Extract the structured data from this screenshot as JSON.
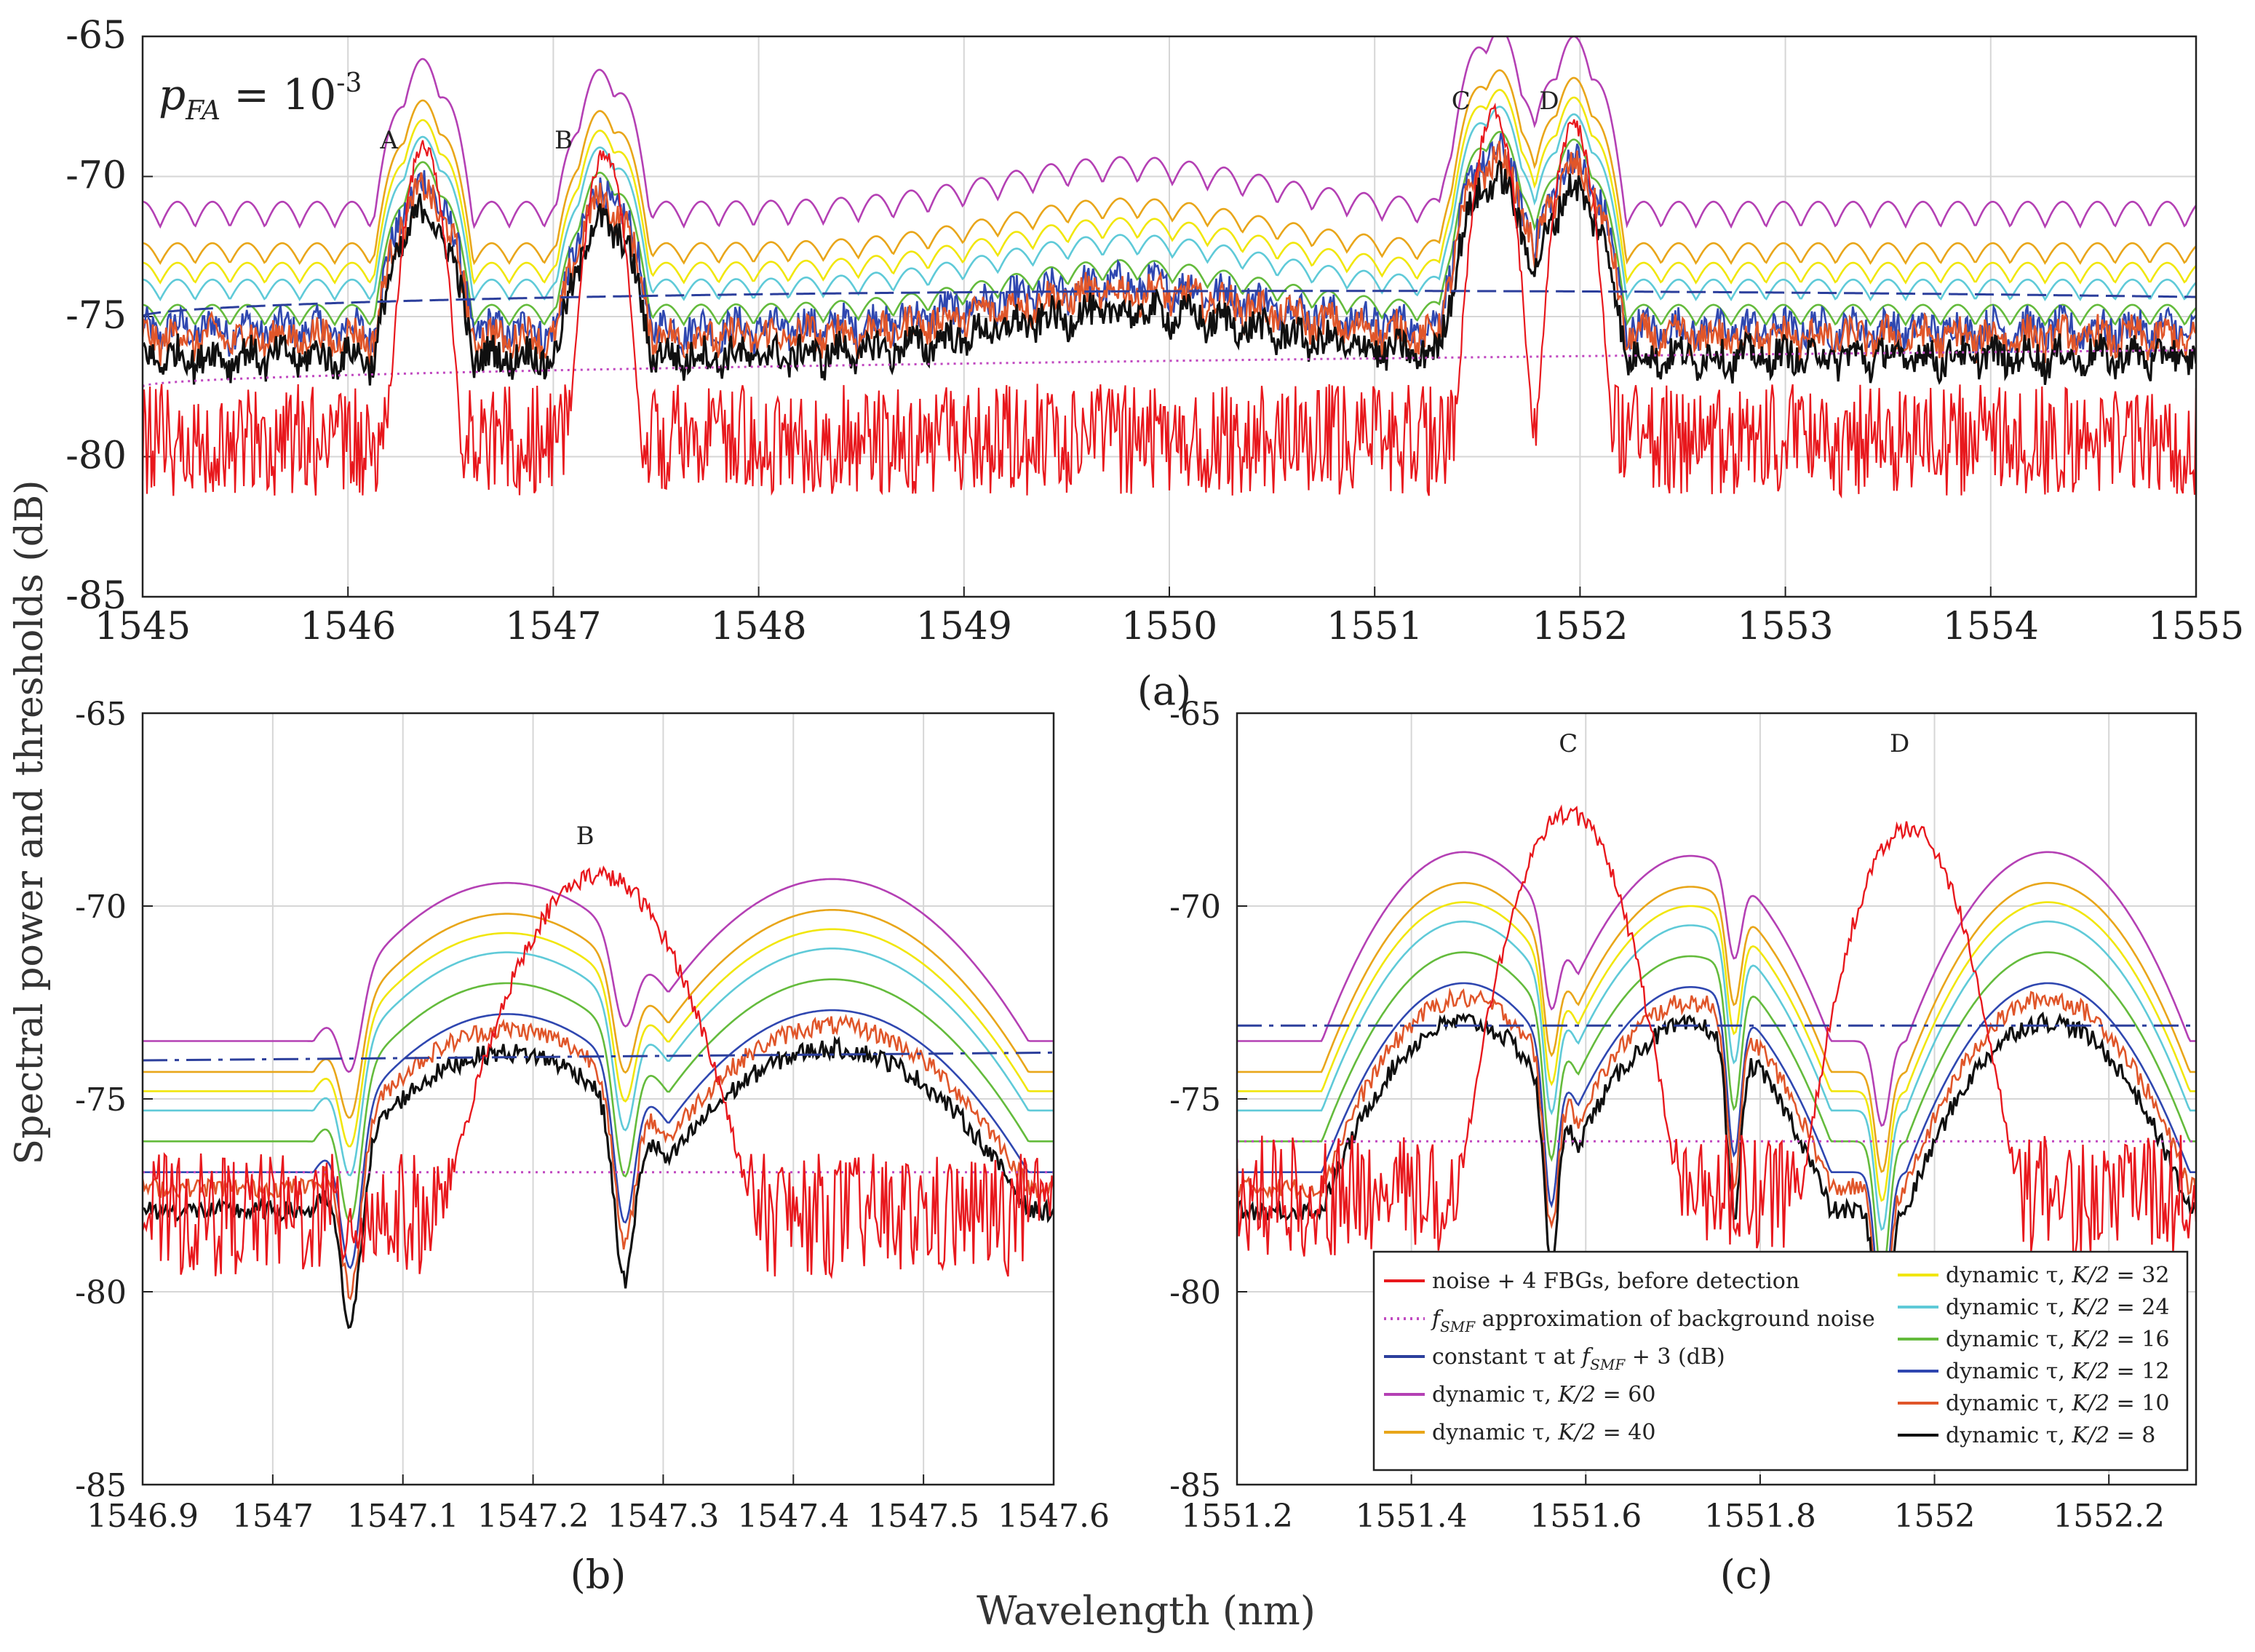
{
  "figure": {
    "ylabel": "Spectral power and thresholds (dB)",
    "xlabel": "Wavelength (nm)",
    "pfa": {
      "p": "p",
      "sub": "FA",
      "eq": " = 10",
      "exp": "-3"
    }
  },
  "colors": {
    "noise": "#e8181d",
    "fsmf": "#c048c0",
    "constant": "#2c3f9c",
    "k60": "#b440b4",
    "k40": "#e8a61a",
    "k32": "#f1e60c",
    "k24": "#5fcad8",
    "k16": "#64bb3c",
    "k12": "#2f47b0",
    "k10": "#e0562a",
    "k8": "#101010",
    "grid": "#d6d6d6"
  },
  "chart_data": [
    {
      "id": "a",
      "type": "line",
      "panel_label": "(a)",
      "xlim": [
        1545,
        1555
      ],
      "ylim": [
        -85,
        -65
      ],
      "xticks": [
        "1545",
        "1546",
        "1547",
        "1548",
        "1549",
        "1550",
        "1551",
        "1552",
        "1553",
        "1554",
        "1555"
      ],
      "yticks": [
        "-65",
        "-70",
        "-75",
        "-80",
        "-85"
      ],
      "peaks": [
        {
          "name": "A",
          "center": 1546.37,
          "peak_db": -68.9,
          "label_x": 1546.2,
          "label_y": -69.0
        },
        {
          "name": "B",
          "center": 1547.25,
          "peak_db": -69.2,
          "label_x": 1547.05,
          "label_y": -69.0
        },
        {
          "name": "C",
          "center": 1551.58,
          "peak_db": -67.7,
          "label_x": 1551.42,
          "label_y": -67.6
        },
        {
          "name": "D",
          "center": 1551.97,
          "peak_db": -68.1,
          "label_x": 1551.85,
          "label_y": -67.6
        }
      ],
      "baseline_db": -79.0,
      "fsmf_db": [
        -77.5,
        -77.2,
        -76.6,
        -76.2
      ],
      "constant_db": [
        -75.0,
        -74.0,
        -73.4,
        -73.9
      ],
      "dynamic_offsets_db": {
        "k60": 4.6,
        "k40": 3.3,
        "k32": 2.6,
        "k24": 2.0,
        "k16": 1.1,
        "k12": 0.5,
        "k10": 0.2,
        "k8": -0.5
      }
    },
    {
      "id": "b",
      "type": "line",
      "panel_label": "(b)",
      "xlim": [
        1546.9,
        1547.6
      ],
      "ylim": [
        -85,
        -65
      ],
      "xticks": [
        "1546.9",
        "1547",
        "1547.1",
        "1547.2",
        "1547.3",
        "1547.4",
        "1547.5",
        "1547.6"
      ],
      "yticks": [
        "-65",
        "-70",
        "-75",
        "-80",
        "-85"
      ],
      "peaks": [
        {
          "name": "B",
          "center": 1547.25,
          "peak_db": -69.2,
          "label_x": 1547.24,
          "label_y": -68.4
        }
      ],
      "lobes": [
        {
          "center": 1547.18,
          "db_k60": -69.4
        },
        {
          "center": 1547.43,
          "db_k60": -69.3
        }
      ],
      "nulls": [
        1547.06,
        1547.27
      ],
      "baseline_db": -78.0,
      "fsmf_db": -76.9,
      "constant_db": [
        -74.0,
        -73.8
      ],
      "dynamic_offsets_db": {
        "k60": 0.0,
        "k40": 0.8,
        "k32": 1.3,
        "k24": 1.8,
        "k16": 2.6,
        "k12": 3.4,
        "k10": 3.8,
        "k8": 4.4
      }
    },
    {
      "id": "c",
      "type": "line",
      "panel_label": "(c)",
      "xlim": [
        1551.2,
        1552.3
      ],
      "ylim": [
        -85,
        -65
      ],
      "xticks": [
        "1551.2",
        "1551.4",
        "1551.6",
        "1551.8",
        "1552",
        "1552.2"
      ],
      "yticks": [
        "-65",
        "-70",
        "-75",
        "-80",
        "-85"
      ],
      "peaks": [
        {
          "name": "C",
          "center": 1551.58,
          "peak_db": -67.6,
          "label_x": 1551.58,
          "label_y": -66.0
        },
        {
          "name": "D",
          "center": 1551.97,
          "peak_db": -68.0,
          "label_x": 1551.96,
          "label_y": -66.0
        }
      ],
      "lobes": [
        {
          "center": 1551.46,
          "db_k60": -68.6
        },
        {
          "center": 1551.72,
          "db_k60": -68.7
        },
        {
          "center": 1552.13,
          "db_k60": -68.6
        }
      ],
      "nulls": [
        1551.56,
        1551.77,
        1551.94
      ],
      "baseline_db": -77.5,
      "fsmf_db": -76.1,
      "constant_db": [
        -73.1,
        -73.1
      ],
      "dynamic_offsets_db": {
        "k60": 0.0,
        "k40": 0.8,
        "k32": 1.3,
        "k24": 1.8,
        "k16": 2.6,
        "k12": 3.4,
        "k10": 3.8,
        "k8": 4.4
      }
    }
  ],
  "legend": {
    "left": [
      {
        "key": "noise",
        "text": "noise + 4 FBGs, before detection",
        "style": "solid"
      },
      {
        "key": "fsmf",
        "pre": "",
        "italic": "f",
        "sub": "SMF",
        "text": " approximation of background noise",
        "style": "dotted"
      },
      {
        "key": "constant",
        "pre": "constant τ at ",
        "italic": "f",
        "sub": "SMF",
        "text": " + 3 (dB)",
        "style": "solid"
      },
      {
        "key": "k60",
        "pre": "dynamic τ, ",
        "italic": "K/2",
        "text": " = 60",
        "style": "solid"
      },
      {
        "key": "k40",
        "pre": "dynamic τ, ",
        "italic": "K/2",
        "text": " = 40",
        "style": "solid"
      }
    ],
    "right": [
      {
        "key": "k32",
        "pre": "dynamic τ, ",
        "italic": "K/2",
        "text": " = 32",
        "style": "solid"
      },
      {
        "key": "k24",
        "pre": "dynamic τ, ",
        "italic": "K/2",
        "text": " = 24",
        "style": "solid"
      },
      {
        "key": "k16",
        "pre": "dynamic τ, ",
        "italic": "K/2",
        "text": " = 16",
        "style": "solid"
      },
      {
        "key": "k12",
        "pre": "dynamic τ, ",
        "italic": "K/2",
        "text": " = 12",
        "style": "solid"
      },
      {
        "key": "k10",
        "pre": "dynamic τ, ",
        "italic": "K/2",
        "text": " = 10",
        "style": "solid"
      },
      {
        "key": "k8",
        "pre": "dynamic τ, ",
        "italic": "K/2",
        "text": " = 8",
        "style": "solid"
      }
    ]
  }
}
